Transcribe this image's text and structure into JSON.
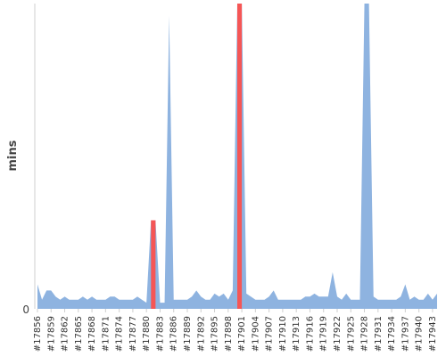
{
  "chart_data": {
    "type": "area",
    "title": "",
    "xlabel": "",
    "ylabel": "mins",
    "y_tick_labels": [
      "0"
    ],
    "y_axis_min": 0,
    "y_visible_max": 1,
    "grid": false,
    "legend": "none",
    "base_color": "#8eb3e0",
    "highlight_color": "#f55656",
    "x_start": 17856,
    "x_end": 17944,
    "tick_step": 3,
    "x_tick_labels": [
      "#17856",
      "#17859",
      "#17862",
      "#17865",
      "#17868",
      "#17871",
      "#17874",
      "#17877",
      "#17880",
      "#17883",
      "#17886",
      "#17889",
      "#17892",
      "#17895",
      "#17898",
      "#17901",
      "#17904",
      "#17907",
      "#17910",
      "#17913",
      "#17916",
      "#17919",
      "#17922",
      "#17925",
      "#17928",
      "#17931",
      "#17934",
      "#17937",
      "#17940",
      "#17943"
    ],
    "values": [
      0.08,
      0.03,
      0.06,
      0.06,
      0.04,
      0.03,
      0.04,
      0.03,
      0.03,
      0.03,
      0.04,
      0.03,
      0.04,
      0.03,
      0.03,
      0.03,
      0.04,
      0.04,
      0.03,
      0.03,
      0.03,
      0.03,
      0.04,
      0.03,
      0.02,
      0.29,
      0.29,
      0.02,
      0.02,
      0.96,
      0.03,
      0.03,
      0.03,
      0.03,
      0.04,
      0.06,
      0.04,
      0.03,
      0.03,
      0.05,
      0.04,
      0.05,
      0.03,
      0.06,
      1.0,
      1.0,
      0.05,
      0.04,
      0.03,
      0.03,
      0.03,
      0.04,
      0.06,
      0.03,
      0.03,
      0.03,
      0.03,
      0.03,
      0.03,
      0.04,
      0.04,
      0.05,
      0.04,
      0.04,
      0.04,
      0.12,
      0.04,
      0.03,
      0.05,
      0.03,
      0.03,
      0.03,
      1.0,
      1.0,
      0.04,
      0.03,
      0.03,
      0.03,
      0.03,
      0.03,
      0.04,
      0.08,
      0.03,
      0.04,
      0.03,
      0.03,
      0.05,
      0.03,
      0.05
    ],
    "highlight_ranges": [
      {
        "start": 17881,
        "end": 17882
      },
      {
        "start": 17900,
        "end": 17901
      }
    ]
  }
}
